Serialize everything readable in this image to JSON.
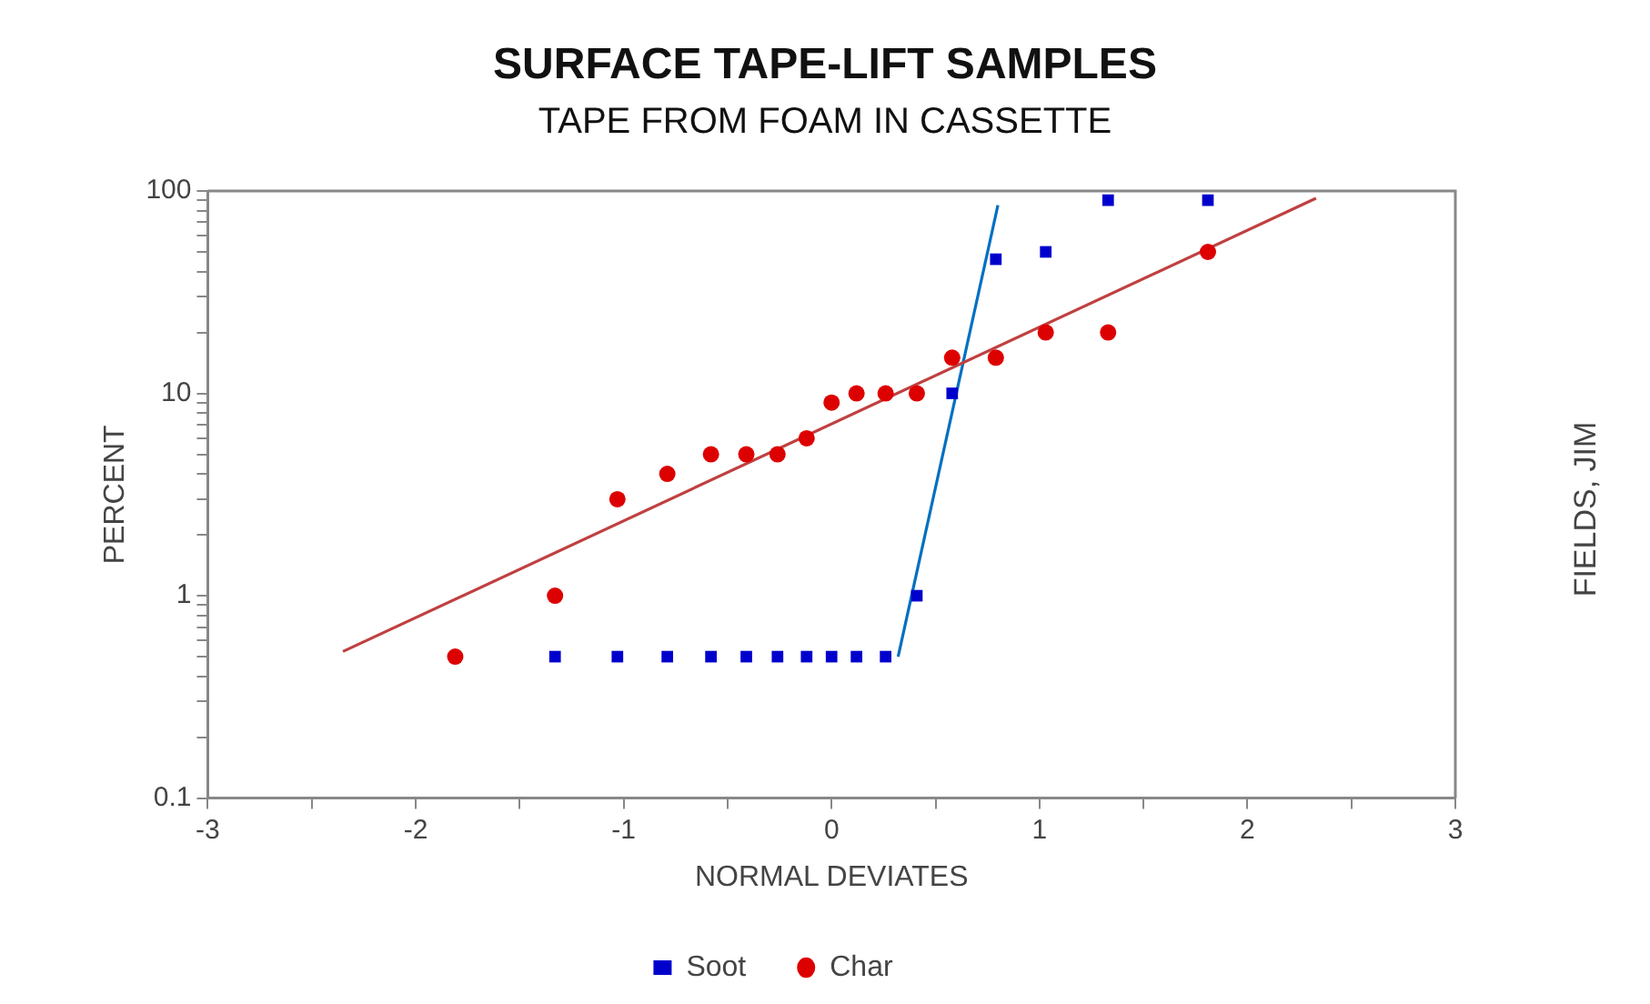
{
  "chart_data": {
    "type": "scatter",
    "title": "SURFACE TAPE-LIFT SAMPLES",
    "subtitle": "TAPE FROM FOAM IN CASSETTE",
    "xlabel": "NORMAL DEVIATES",
    "ylabel": "PERCENT",
    "annotations": [
      "FIELDS, JIM"
    ],
    "log": "y",
    "grid": false,
    "legend": "bottom",
    "xlim": [
      -3,
      3
    ],
    "xticks": [
      -3,
      {
        "value": -2.5,
        "label": null
      },
      -2,
      {
        "value": -1.5,
        "label": null
      },
      -1,
      {
        "value": -0.5,
        "label": null
      },
      0,
      {
        "value": 0.5,
        "label": null
      },
      1,
      {
        "value": 1.5,
        "label": null
      },
      2,
      {
        "value": 2.5,
        "label": null
      },
      3
    ],
    "ylim": [
      0.1,
      100
    ],
    "yticks": [
      0.1,
      {
        "value": 0.2,
        "label": null
      },
      {
        "value": 0.3,
        "label": null
      },
      {
        "value": 0.4,
        "label": null
      },
      {
        "value": 0.5,
        "label": null
      },
      {
        "value": 0.6,
        "label": null
      },
      {
        "value": 0.7,
        "label": null
      },
      {
        "value": 0.8,
        "label": null
      },
      {
        "value": 0.9,
        "label": null
      },
      1,
      {
        "value": 2,
        "label": null
      },
      {
        "value": 3,
        "label": null
      },
      {
        "value": 4,
        "label": null
      },
      {
        "value": 5,
        "label": null
      },
      {
        "value": 6,
        "label": null
      },
      {
        "value": 7,
        "label": null
      },
      {
        "value": 8,
        "label": null
      },
      {
        "value": 9,
        "label": null
      },
      10,
      {
        "value": 20,
        "label": null
      },
      {
        "value": 30,
        "label": null
      },
      {
        "value": 40,
        "label": null
      },
      {
        "value": 50,
        "label": null
      },
      {
        "value": 60,
        "label": null
      },
      {
        "value": 70,
        "label": null
      },
      {
        "value": 80,
        "label": null
      },
      {
        "value": 90,
        "label": null
      },
      100
    ],
    "x": [
      -1.81,
      -1.33,
      -1.03,
      -0.79,
      -0.58,
      -0.41,
      -0.26,
      -0.12,
      0,
      0.12,
      0.26,
      0.41,
      0.58,
      0.79,
      1.03,
      1.33,
      1.81
    ],
    "series": [
      {
        "name": "Soot",
        "color": "#0000cc",
        "marker": "square",
        "values": [
          null,
          0.5,
          0.5,
          0.5,
          0.5,
          0.5,
          0.5,
          0.5,
          0.5,
          0.5,
          0.5,
          1,
          10,
          46,
          50,
          90,
          90
        ]
      },
      {
        "name": "Char",
        "color": "#dd0000",
        "marker": "circle",
        "values": [
          0.5,
          1,
          3,
          4,
          5,
          5,
          5,
          6,
          9,
          10,
          10,
          10,
          15,
          15,
          20,
          20,
          50
        ]
      },
      {
        "type": "line",
        "color": "#c04040",
        "x": [
          -2.35,
          2.33
        ],
        "values": [
          0.53,
          92
        ]
      },
      {
        "type": "line",
        "color": "#0070c0",
        "x": [
          0.32,
          0.8
        ],
        "values": [
          0.5,
          85
        ]
      }
    ]
  }
}
